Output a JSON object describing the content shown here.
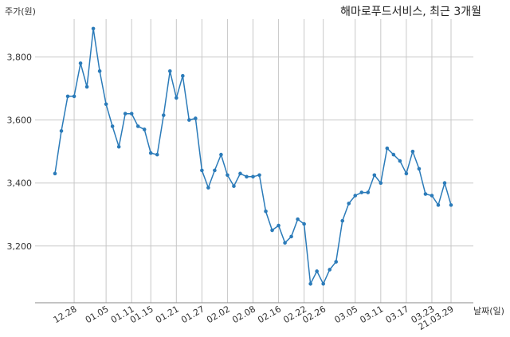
{
  "chart_data": {
    "type": "line",
    "title": "해마로푸드서비스, 최근 3개월",
    "ylabel": "주가(원)",
    "xlabel": "날짜(일)",
    "ylim": [
      3020,
      3920
    ],
    "yticks": [
      3200,
      3400,
      3600,
      3800
    ],
    "ytick_labels": [
      "3,200",
      "3,400",
      "3,600",
      "3,800"
    ],
    "xtick_labels": [
      "12.28",
      "01.05",
      "01.11",
      "01.15",
      "01.21",
      "01.27",
      "02.02",
      "02.08",
      "02.16",
      "02.22",
      "02.26",
      "03.05",
      "03.11",
      "03.17",
      "03.23",
      "21.03.29"
    ],
    "xtick_index": [
      3,
      8,
      12,
      15,
      19,
      23,
      27,
      31,
      35,
      39,
      42,
      47,
      51,
      55,
      59,
      62
    ],
    "grid": true,
    "color": "#2b7bb9",
    "series": [
      {
        "values": [
          3430,
          3565,
          3675,
          3675,
          3780,
          3705,
          3890,
          3755,
          3650,
          3580,
          3515,
          3620,
          3620,
          3580,
          3570,
          3495,
          3490,
          3615,
          3755,
          3670,
          3740,
          3600,
          3605,
          3440,
          3385,
          3440,
          3490,
          3425,
          3390,
          3430,
          3420,
          3420,
          3425,
          3310,
          3250,
          3265,
          3210,
          3230,
          3285,
          3270,
          3080,
          3120,
          3080,
          3125,
          3150,
          3280,
          3335,
          3360,
          3370,
          3370,
          3425,
          3400,
          3510,
          3490,
          3470,
          3430,
          3500,
          3445,
          3365,
          3360,
          3330,
          3400,
          3330
        ]
      }
    ]
  }
}
